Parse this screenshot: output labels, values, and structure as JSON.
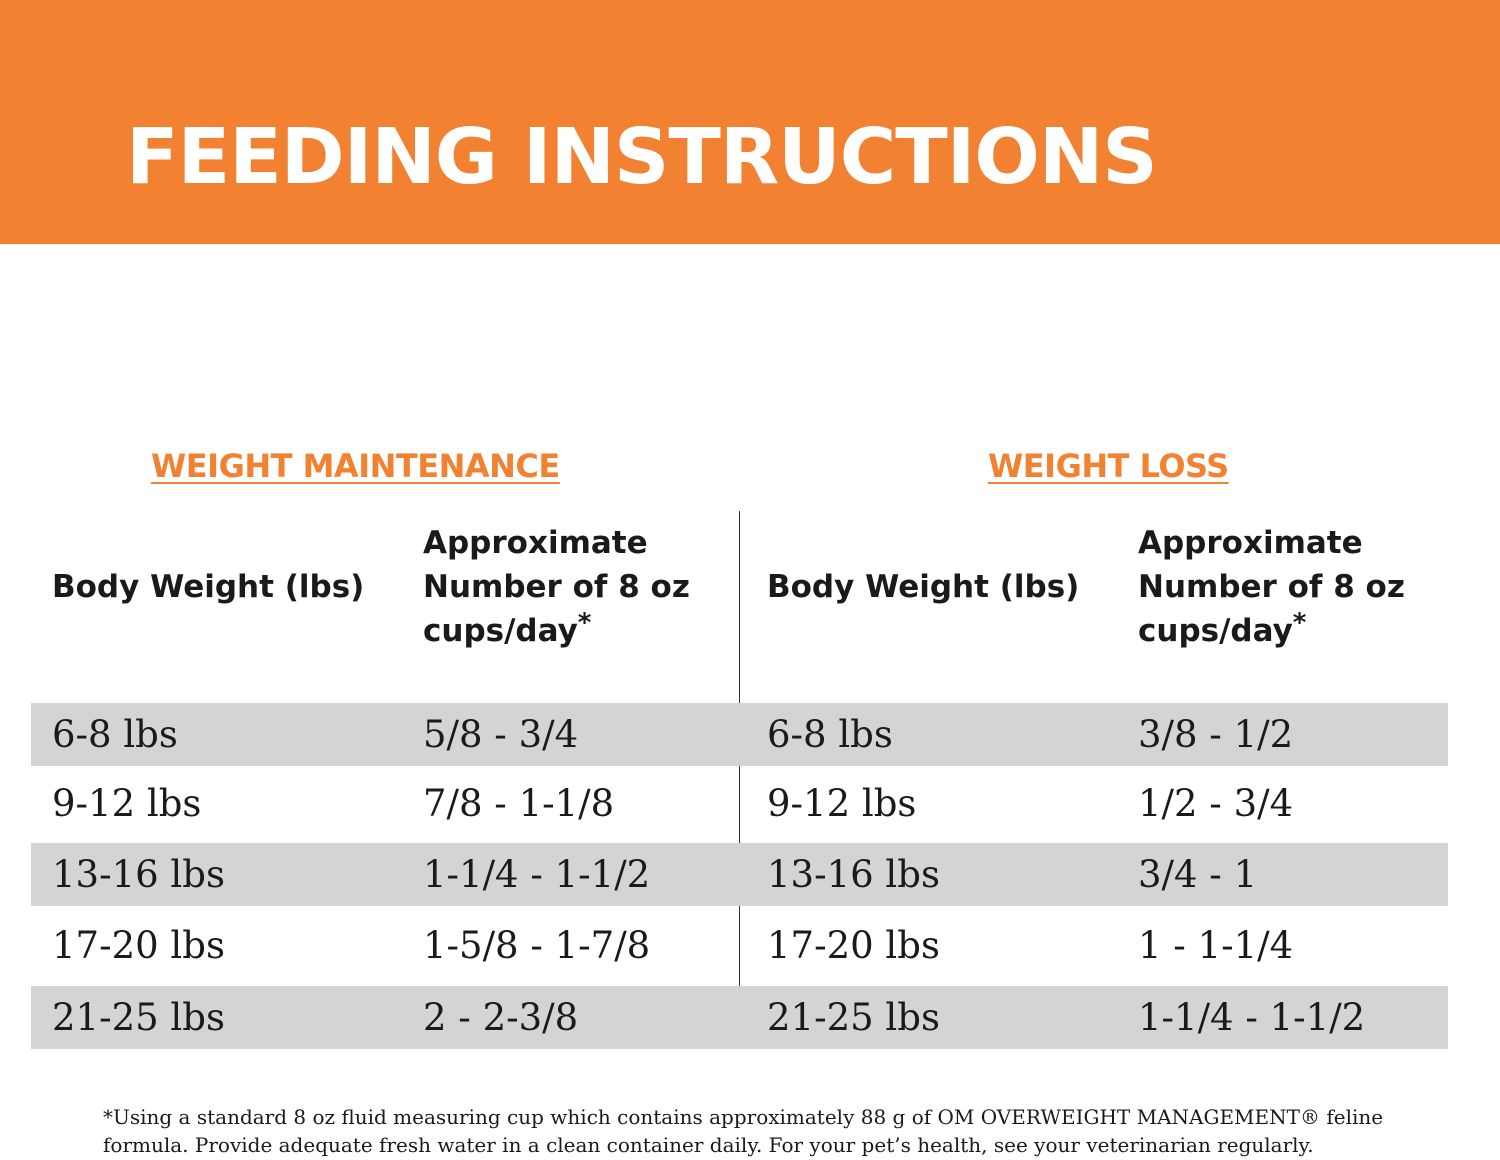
{
  "banner": {
    "title": "FEEDING INSTRUCTIONS",
    "color": "#f28232"
  },
  "sections": {
    "maintenance_title": "WEIGHT MAINTENANCE",
    "loss_title": "WEIGHT LOSS"
  },
  "headers": {
    "body_weight": "Body Weight (lbs)",
    "cups_line1": "Approximate",
    "cups_line2": "Number of 8 oz",
    "cups_line3": "cups/day",
    "cups_mark": "*"
  },
  "rows": [
    {
      "m_weight": "6-8 lbs",
      "m_cups": "5/8 - 3/4",
      "l_weight": "6-8 lbs",
      "l_cups": "3/8 - 1/2"
    },
    {
      "m_weight": "9-12 lbs",
      "m_cups": "7/8 - 1-1/8",
      "l_weight": "9-12 lbs",
      "l_cups": "1/2 - 3/4"
    },
    {
      "m_weight": "13-16 lbs",
      "m_cups": "1-1/4 - 1-1/2",
      "l_weight": "13-16 lbs",
      "l_cups": "3/4 - 1"
    },
    {
      "m_weight": "17-20 lbs",
      "m_cups": "1-5/8 - 1-7/8",
      "l_weight": "17-20 lbs",
      "l_cups": "1 - 1-1/4"
    },
    {
      "m_weight": "21-25 lbs",
      "m_cups": "2 - 2-3/8",
      "l_weight": "21-25 lbs",
      "l_cups": "1-1/4 - 1-1/2"
    }
  ],
  "footnote": "*Using a standard 8 oz fluid measuring cup which contains approximately 88 g of OM OVERWEIGHT MANAGEMENT® feline formula. Provide adequate fresh water in a clean container daily. For your pet’s health, see your veterinarian regularly.",
  "colors": {
    "accent": "#f28232",
    "row_shade": "#d4d4d4"
  }
}
